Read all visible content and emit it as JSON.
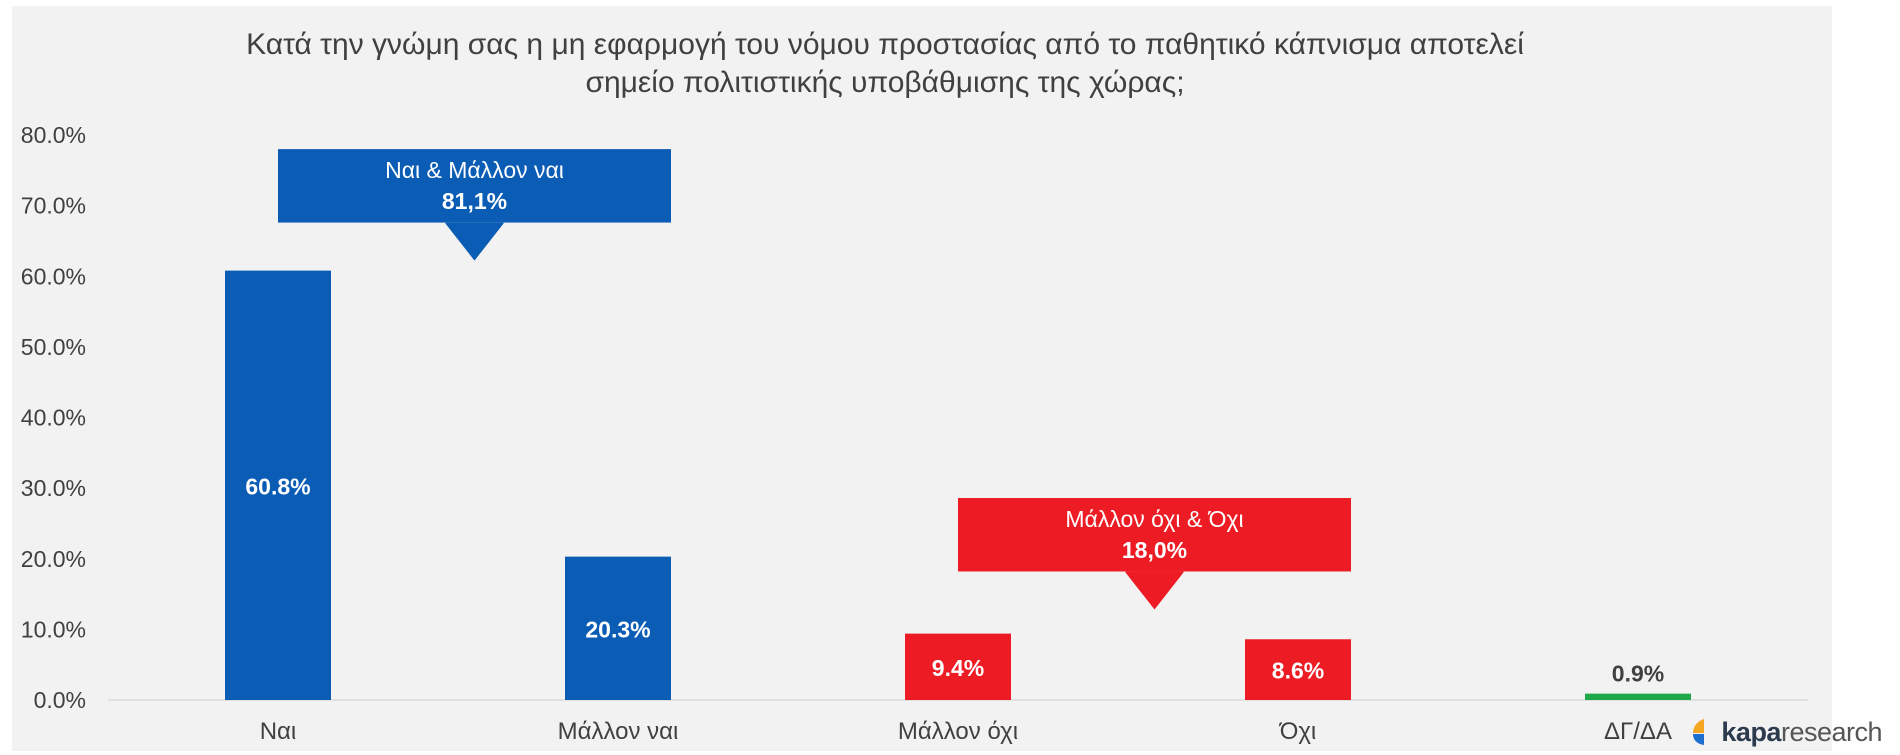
{
  "chart_data": {
    "type": "bar",
    "title": "Κατά την γνώμη σας η μη εφαρμογή του νόμου προστασίας από το παθητικό κάπνισμα αποτελεί σημείο πολιτιστικής υποβάθμισης της χώρας;",
    "categories": [
      "Ναι",
      "Μάλλον ναι",
      "Μάλλον όχι",
      "Όχι",
      "ΔΓ/ΔΑ"
    ],
    "values": [
      60.8,
      20.3,
      9.4,
      8.6,
      0.9
    ],
    "value_labels": [
      "60.8%",
      "20.3%",
      "9.4%",
      "8.6%",
      "0.9%"
    ],
    "bar_colors": [
      "#0b5cb5",
      "#0b5cb5",
      "#ed1c24",
      "#ed1c24",
      "#1ea84a"
    ],
    "ylim": [
      0,
      80
    ],
    "yticks": [
      0,
      10,
      20,
      30,
      40,
      50,
      60,
      70,
      80
    ],
    "ytick_labels": [
      "0.0%",
      "10.0%",
      "20.0%",
      "30.0%",
      "40.0%",
      "50.0%",
      "60.0%",
      "70.0%",
      "80.0%"
    ],
    "xlabel": "",
    "ylabel": "",
    "grid": false,
    "legend": "none",
    "annotations": [
      {
        "line1": "Ναι & Μάλλον ναι",
        "line2": "81,1%",
        "color": "#0b5cb5"
      },
      {
        "line1": "Μάλλον όχι & Όχι",
        "line2": "18,0%",
        "color": "#ed1c24"
      }
    ]
  },
  "brand": {
    "bold": "kapa",
    "rest": "research"
  },
  "colors": {
    "background": "#f2f2f2",
    "axis": "#d9d9d9",
    "text": "#404040"
  }
}
